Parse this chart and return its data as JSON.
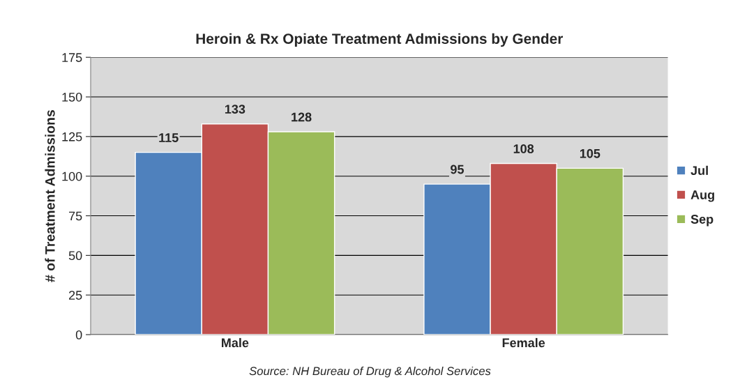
{
  "chart_data": {
    "type": "bar",
    "title": "Heroin & Rx Opiate Treatment Admissions by Gender",
    "ylabel": "# of Treatment Admissions",
    "categories": [
      "Male",
      "Female"
    ],
    "series": [
      {
        "name": "Jul",
        "color": "#4f81bd",
        "values": [
          115,
          95
        ]
      },
      {
        "name": "Aug",
        "color": "#c0504d",
        "values": [
          133,
          108
        ]
      },
      {
        "name": "Sep",
        "color": "#9bbb59",
        "values": [
          128,
          105
        ]
      }
    ],
    "ylim": [
      0,
      175
    ],
    "yticks": [
      0,
      25,
      50,
      75,
      100,
      125,
      150,
      175
    ],
    "grid": "y",
    "legend": "right",
    "data_labels": true,
    "annotations": [
      "Source: NH Bureau of Drug & Alcohol Services"
    ]
  }
}
